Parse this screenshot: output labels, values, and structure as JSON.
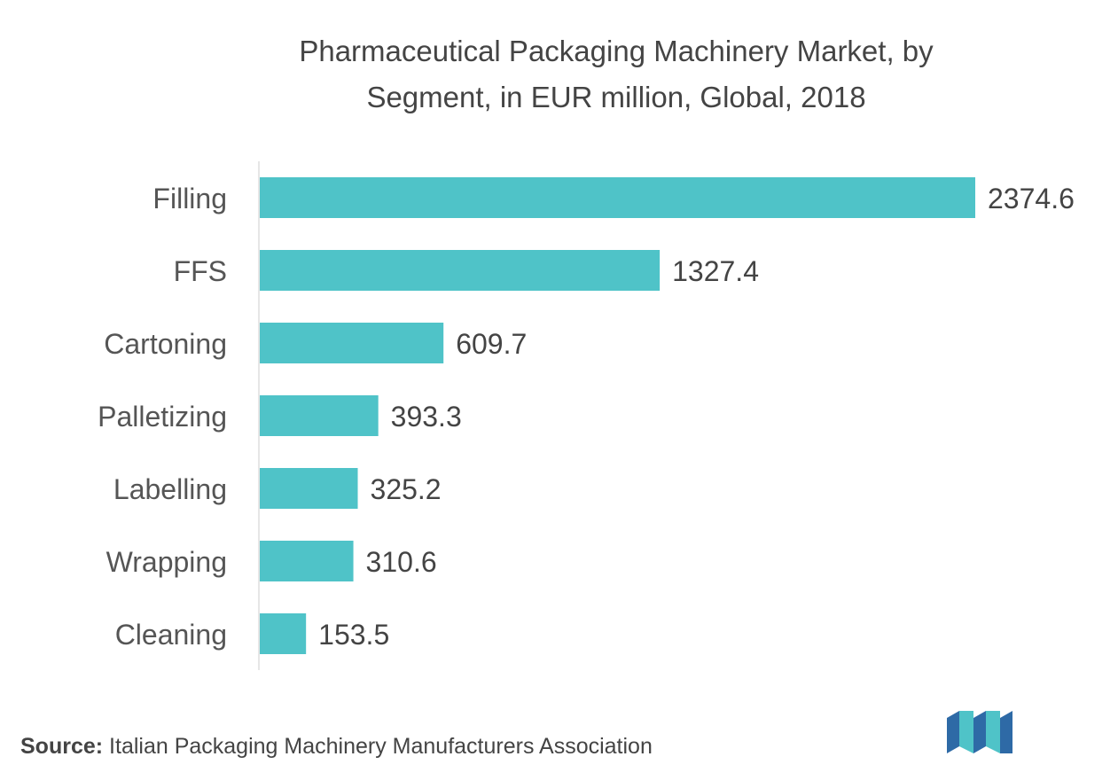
{
  "chart_data": {
    "type": "bar",
    "orientation": "horizontal",
    "title_line1": "Pharmaceutical Packaging Machinery Market, by",
    "title_line2": "Segment, in EUR million, Global, 2018",
    "categories": [
      "Filling",
      "FFS",
      "Cartoning",
      "Palletizing",
      "Labelling",
      "Wrapping",
      "Cleaning"
    ],
    "values": [
      2374.6,
      1327.4,
      609.7,
      393.3,
      325.2,
      310.6,
      153.5
    ],
    "value_labels": [
      "2374.6",
      "1327.4",
      "609.7",
      "393.3",
      "325.2",
      "310.6",
      "153.5"
    ],
    "xlim": [
      0,
      2374.6
    ],
    "grid": false,
    "bar_color": "#4fc3c8"
  },
  "source": {
    "label": "Source:",
    "text": "Italian Packaging Machinery Manufacturers Association"
  },
  "logo": {
    "icon": "mordor-intelligence-logo-icon"
  }
}
